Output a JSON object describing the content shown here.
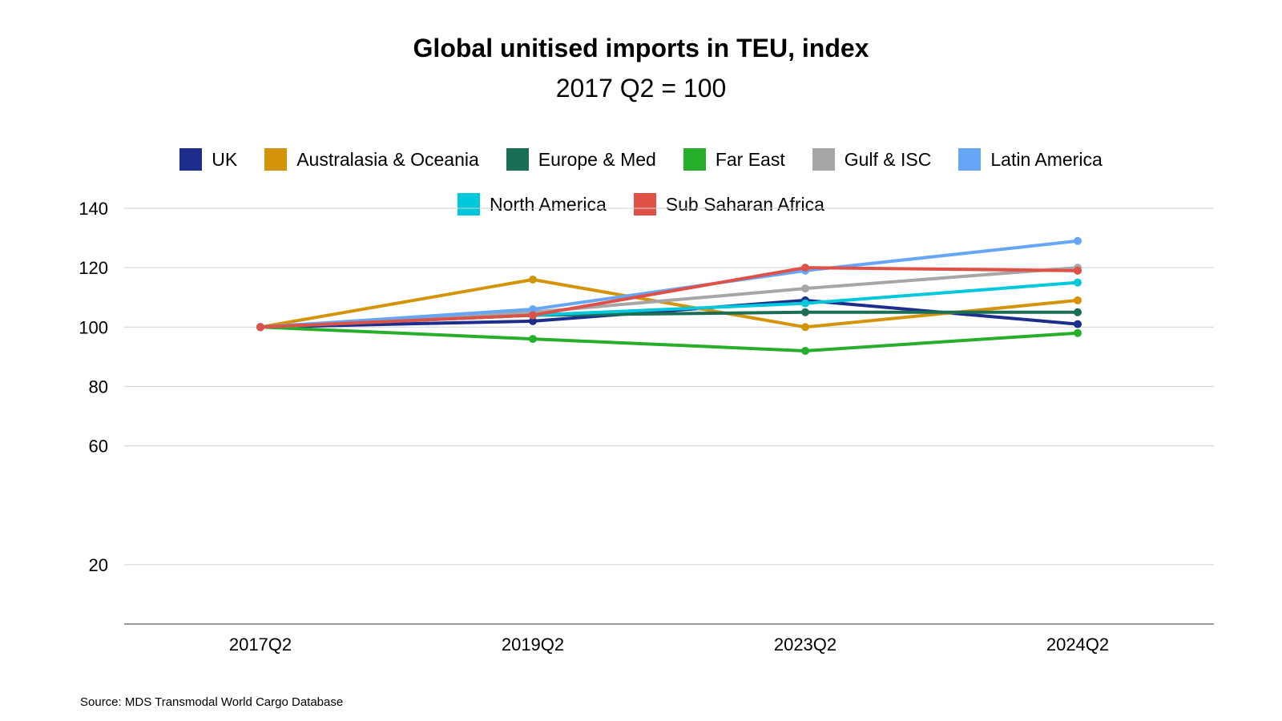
{
  "chart_data": {
    "type": "line",
    "title": "Global unitised imports in TEU, index",
    "subtitle": "2017 Q2 = 100",
    "categories": [
      "2017Q2",
      "2019Q2",
      "2023Q2",
      "2024Q2"
    ],
    "y_ticks": [
      20,
      60,
      80,
      100,
      120,
      140
    ],
    "ylim": [
      0,
      140
    ],
    "grid": true,
    "legend_position": "top-center",
    "series": [
      {
        "name": "UK",
        "color": "#1c2d8c",
        "values": [
          100,
          102,
          109,
          101
        ]
      },
      {
        "name": "Australasia & Oceania",
        "color": "#d4940a",
        "values": [
          100,
          116,
          100,
          109
        ]
      },
      {
        "name": "Europe & Med",
        "color": "#1a6e56",
        "values": [
          100,
          104,
          105,
          105
        ]
      },
      {
        "name": "Far East",
        "color": "#27ae2a",
        "values": [
          100,
          96,
          92,
          98
        ]
      },
      {
        "name": "Gulf & ISC",
        "color": "#a6a6a6",
        "values": [
          100,
          105,
          113,
          120
        ]
      },
      {
        "name": "Latin America",
        "color": "#67a6f7",
        "values": [
          100,
          106,
          119,
          129
        ]
      },
      {
        "name": "North America",
        "color": "#00c8dc",
        "values": [
          100,
          104,
          108,
          115
        ]
      },
      {
        "name": "Sub Saharan Africa",
        "color": "#df5147",
        "values": [
          100,
          104,
          120,
          119
        ]
      }
    ]
  },
  "source": "Source: MDS Transmodal World Cargo Database"
}
